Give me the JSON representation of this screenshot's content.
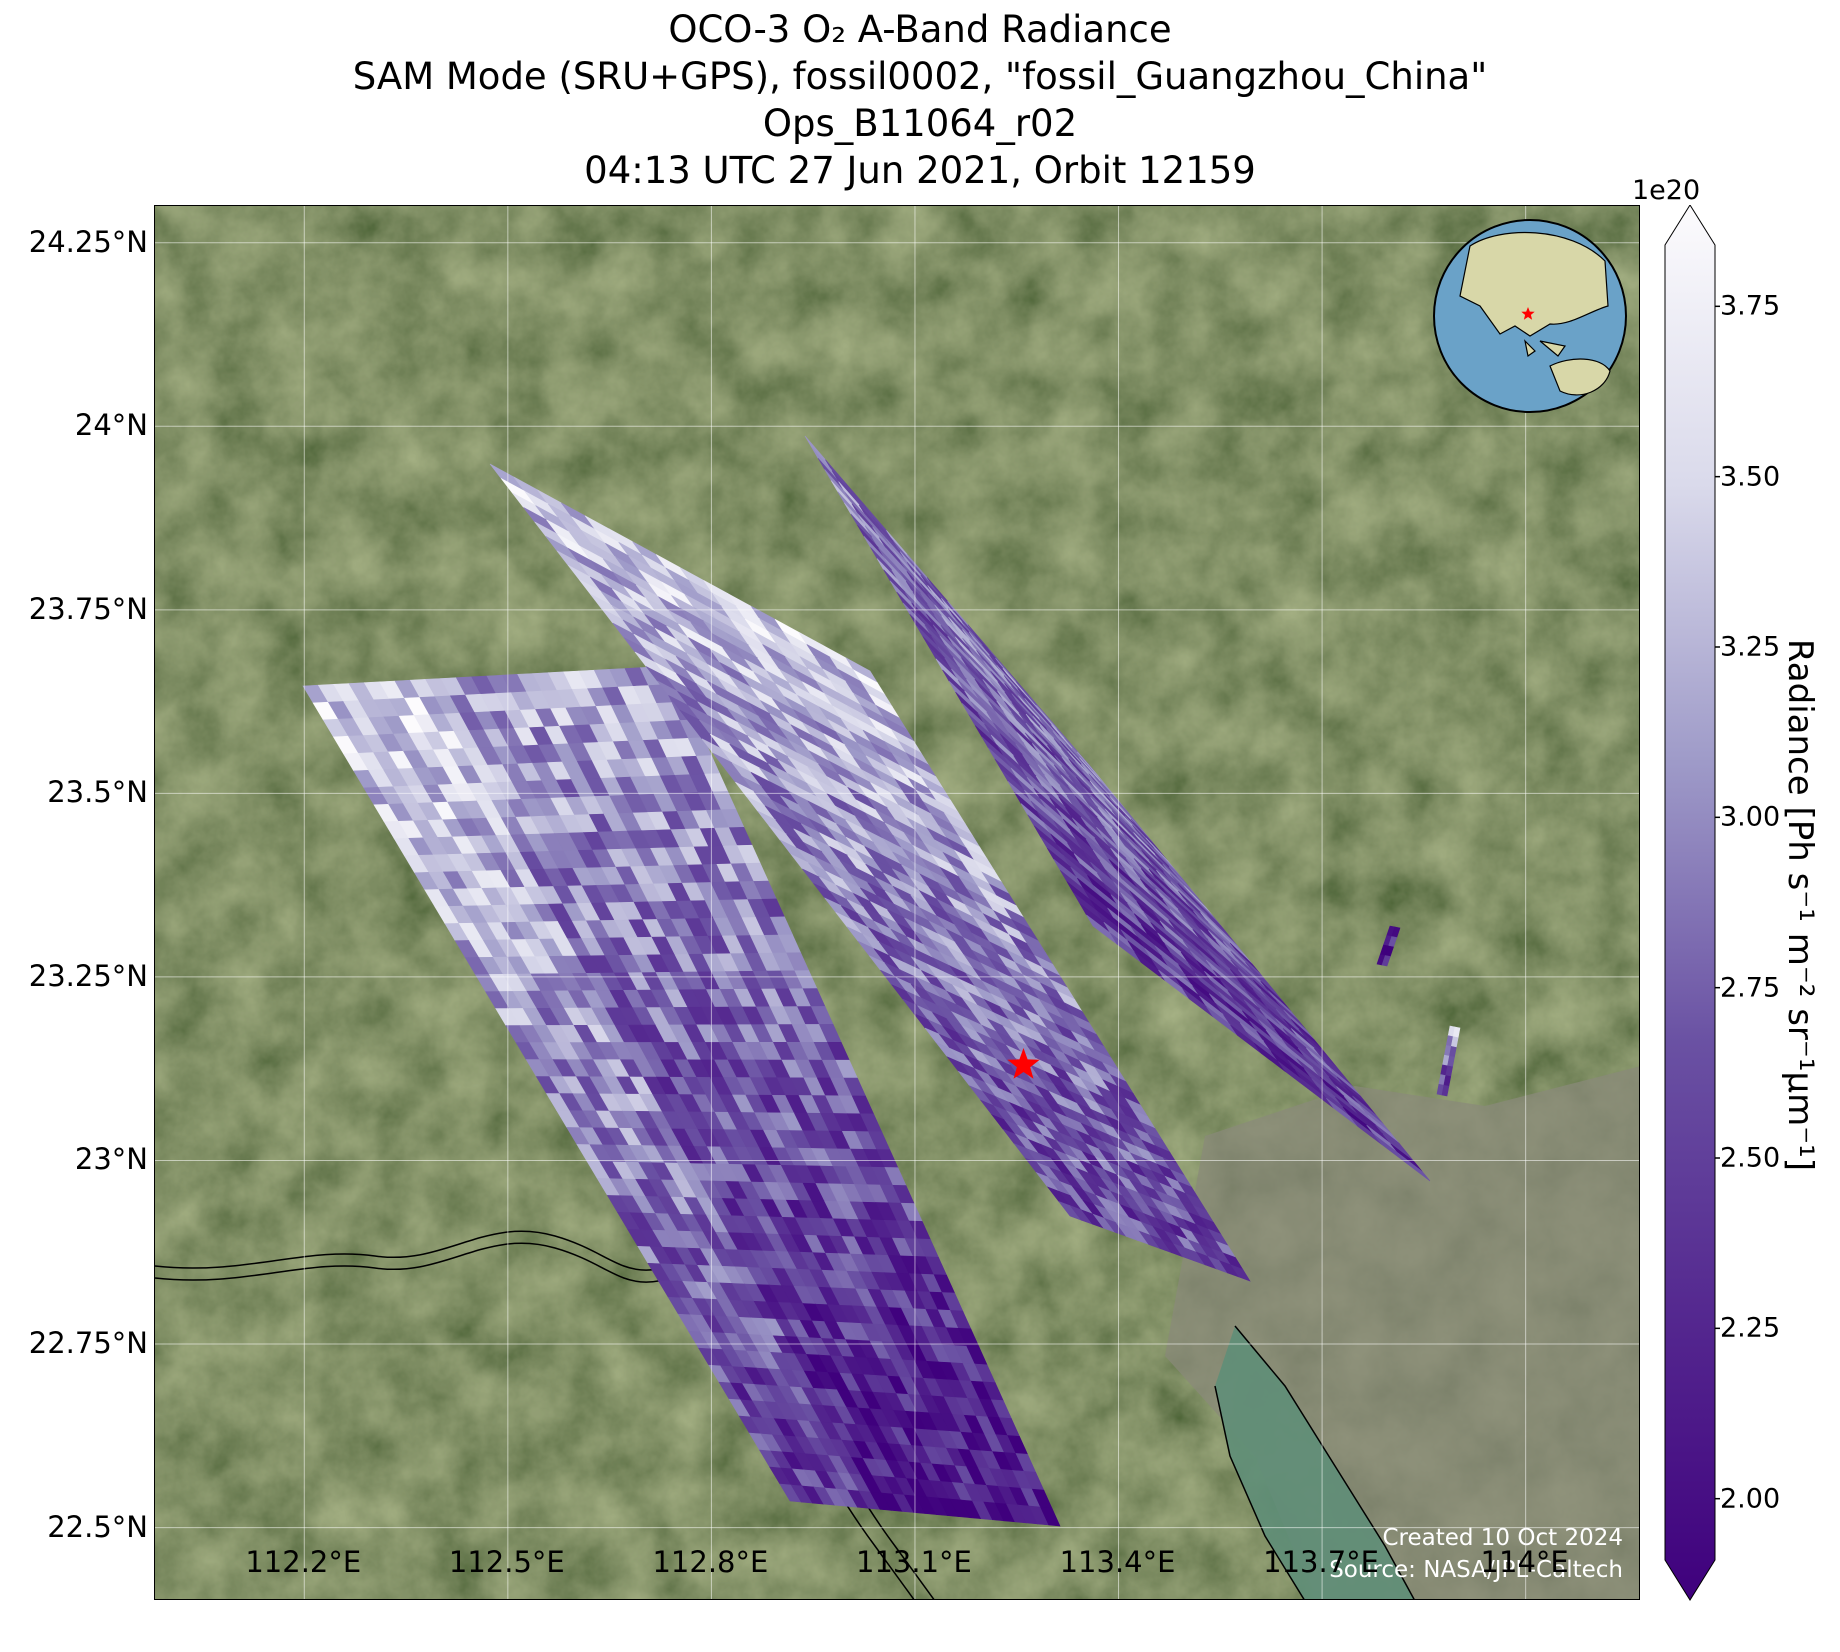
{
  "title": {
    "line1": "OCO-3 O₂ A-Band Radiance",
    "line2": "SAM Mode (SRU+GPS), fossil0002, \"fossil_Guangzhou_China\"",
    "line3": "Ops_B11064_r02",
    "line4": "04:13 UTC 27 Jun 2021, Orbit 12159"
  },
  "map": {
    "lat_ticks": [
      "24.25°N",
      "24°N",
      "23.75°N",
      "23.5°N",
      "23.25°N",
      "23°N",
      "22.75°N",
      "22.5°N"
    ],
    "lat_values": [
      24.25,
      24.0,
      23.75,
      23.5,
      23.25,
      23.0,
      22.75,
      22.5
    ],
    "lon_ticks": [
      "112.2°E",
      "112.5°E",
      "112.8°E",
      "113.1°E",
      "113.4°E",
      "113.7°E",
      "114°E"
    ],
    "lon_values": [
      112.2,
      112.5,
      112.8,
      113.1,
      113.4,
      113.7,
      114.0
    ],
    "lat_range": [
      22.4,
      24.3
    ],
    "lon_range": [
      111.98,
      114.17
    ],
    "target_marker": {
      "lat": 23.13,
      "lon": 113.26,
      "color": "#ff0000"
    },
    "basemap_colors": {
      "land": "#3b4a2c",
      "urban": "#8a8a7a",
      "water": "#5f8e78"
    },
    "credit_line1": "Created 10 Oct 2024",
    "credit_line2": "Source: NASA/JPL-Caltech",
    "inset_globe": {
      "ocean": "#6aa2c8",
      "land": "#d8d7a8",
      "marker": "#ff0000"
    }
  },
  "colorbar": {
    "label": "Radiance [Ph s⁻¹ m⁻² sr⁻¹μm⁻¹]",
    "offset_text": "1e20",
    "ticks": [
      "2.00",
      "2.25",
      "2.50",
      "2.75",
      "3.00",
      "3.25",
      "3.50",
      "3.75"
    ],
    "tick_values": [
      2.0,
      2.25,
      2.5,
      2.75,
      3.0,
      3.25,
      3.5,
      3.75
    ],
    "range": [
      1.91,
      3.84
    ],
    "colormap": "Purples_r",
    "color_low": "#3f007d",
    "color_high": "#fcfbfd"
  }
}
